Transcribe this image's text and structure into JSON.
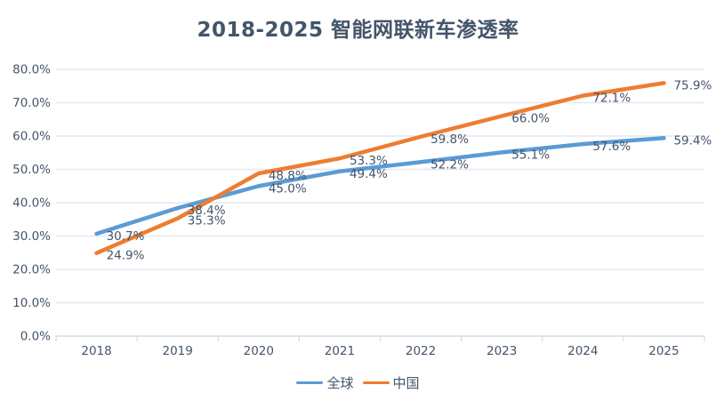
{
  "chart_data": {
    "type": "line",
    "title": "2018-2025 智能网联新车渗透率",
    "categories": [
      "2018",
      "2019",
      "2020",
      "2021",
      "2022",
      "2023",
      "2024",
      "2025"
    ],
    "series": [
      {
        "name": "全球",
        "color": "#5B9BD5",
        "values": [
          30.7,
          38.4,
          45.0,
          49.4,
          52.2,
          55.1,
          57.6,
          59.4
        ]
      },
      {
        "name": "中国",
        "color": "#ED7D31",
        "values": [
          24.9,
          35.3,
          48.8,
          53.3,
          59.8,
          66.0,
          72.1,
          75.9
        ]
      }
    ],
    "y_axis": {
      "min": 0,
      "max": 80,
      "step": 10,
      "tick_labels": [
        "0.0%",
        "10.0%",
        "20.0%",
        "30.0%",
        "40.0%",
        "50.0%",
        "60.0%",
        "70.0%",
        "80.0%"
      ]
    },
    "data_label_format": "one_decimal_percent",
    "legend_position": "bottom",
    "grid": "horizontal",
    "colors": {
      "text": "#44546A",
      "gridline": "#E3E8EF",
      "axis_line": "#D6DCE4"
    }
  }
}
